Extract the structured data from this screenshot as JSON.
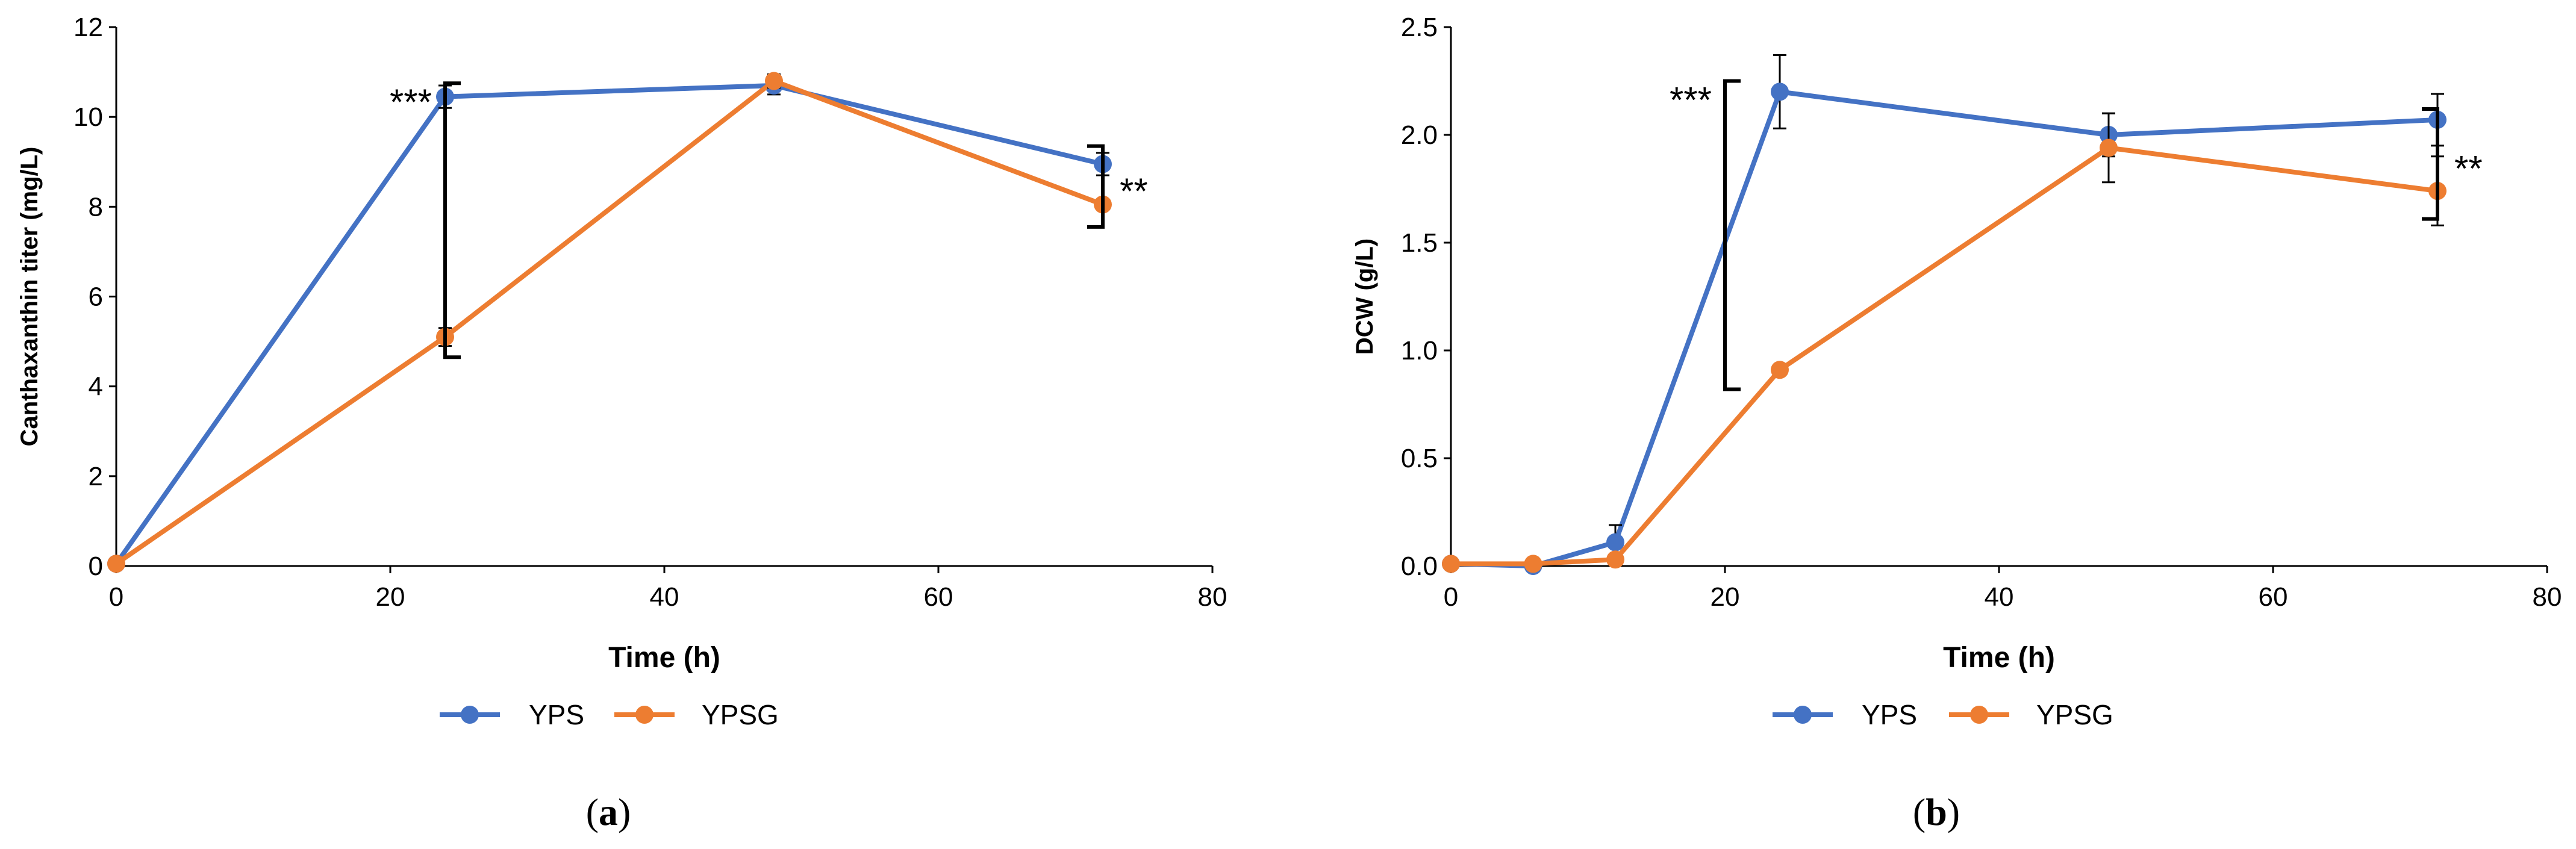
{
  "colors": {
    "YPS": "#4472C4",
    "YPSG": "#ED7D31",
    "axis": "#000000",
    "errorbar": "#000000"
  },
  "chart_data": [
    {
      "panel": "(a)",
      "panel_letter": "a",
      "type": "line",
      "xlabel": "Time (h)",
      "ylabel": "Canthaxanthin titer (mg/L)",
      "xlim": [
        0,
        80
      ],
      "ylim": [
        0,
        12
      ],
      "xticks": [
        0,
        20,
        40,
        60,
        80
      ],
      "yticks": [
        0,
        2,
        4,
        6,
        8,
        10,
        12
      ],
      "ytick_labels": [
        "0",
        "2",
        "4",
        "6",
        "8",
        "10",
        "12"
      ],
      "series": [
        {
          "name": "YPS",
          "x": [
            0,
            24,
            48,
            72
          ],
          "y": [
            0.05,
            10.45,
            10.7,
            8.95
          ],
          "err": [
            0,
            0.25,
            0.2,
            0.25
          ]
        },
        {
          "name": "YPSG",
          "x": [
            0,
            24,
            48,
            72
          ],
          "y": [
            0.05,
            5.1,
            10.8,
            8.05
          ],
          "err": [
            0,
            0.2,
            0.15,
            0.1
          ]
        }
      ],
      "significance": [
        {
          "label": "***",
          "at_x": 24,
          "y_top": 10.75,
          "y_bottom": 4.65
        },
        {
          "label": "**",
          "at_x": 72,
          "y_top": 9.35,
          "y_bottom": 7.55
        }
      ],
      "legend": [
        "YPS",
        "YPSG"
      ],
      "legend_position": "bottom-center"
    },
    {
      "panel": "(b)",
      "panel_letter": "b",
      "type": "line",
      "xlabel": "Time (h)",
      "ylabel": "DCW (g/L)",
      "xlim": [
        0,
        80
      ],
      "ylim": [
        0,
        2.5
      ],
      "xticks": [
        0,
        20,
        40,
        60,
        80
      ],
      "yticks": [
        0,
        0.5,
        1.0,
        1.5,
        2.0,
        2.5
      ],
      "ytick_labels": [
        "0.0",
        "0.5",
        "1.0",
        "1.5",
        "2.0",
        "2.5"
      ],
      "series": [
        {
          "name": "YPS",
          "x": [
            0,
            6,
            12,
            24,
            48,
            72
          ],
          "y": [
            0.01,
            0.0,
            0.11,
            2.2,
            2.0,
            2.07
          ],
          "err": [
            0,
            0,
            0.08,
            0.17,
            0.1,
            0.12
          ]
        },
        {
          "name": "YPSG",
          "x": [
            0,
            6,
            12,
            24,
            48,
            72
          ],
          "y": [
            0.01,
            0.01,
            0.03,
            0.91,
            1.94,
            1.74
          ],
          "err": [
            0,
            0,
            0.01,
            0.02,
            0.16,
            0.16
          ]
        }
      ],
      "significance": [
        {
          "label": "***",
          "at_x": 20,
          "y_top": 2.25,
          "y_bottom": 0.82
        },
        {
          "label": "**",
          "at_x": 72,
          "y_top": 2.12,
          "y_bottom": 1.61
        }
      ],
      "legend": [
        "YPS",
        "YPSG"
      ],
      "legend_position": "bottom-center"
    }
  ]
}
